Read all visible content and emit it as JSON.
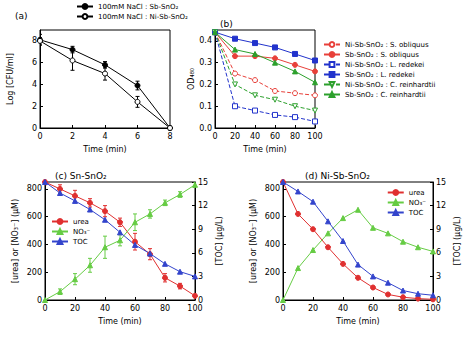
{
  "chart_data": [
    {
      "type": "line",
      "title": "(a)",
      "x_label": "Time (min)",
      "y_label": "Log [CFU/ml]",
      "x": [
        0,
        2,
        4,
        6,
        8
      ],
      "xlim": [
        0,
        8
      ],
      "xticks": [
        0,
        2,
        4,
        6,
        8
      ],
      "ylim": [
        0,
        9
      ],
      "yticks": [
        0,
        2,
        4,
        6,
        8
      ],
      "grid": false,
      "legend": "top",
      "series": [
        {
          "name": "100mM NaCl : Sb-SnO₂",
          "color": "#000000",
          "marker": "circle",
          "line_style": "solid",
          "values": [
            8.1,
            7.2,
            5.8,
            3.9,
            0
          ],
          "errors": [
            0.5,
            0.3,
            0.3,
            0.4,
            0
          ]
        },
        {
          "name": "100mM NaCl : Ni-Sb-SnO₂",
          "color": "#000000",
          "marker": "circle_open",
          "line_style": "solid",
          "values": [
            8.0,
            6.2,
            5.0,
            2.4,
            0
          ],
          "errors": [
            0.3,
            0.9,
            0.6,
            0.5,
            0
          ]
        }
      ]
    },
    {
      "type": "line",
      "title": "(b)",
      "x_label": "Time (min)",
      "y_label": "OD₄₈₀",
      "x": [
        0,
        20,
        40,
        60,
        80,
        100
      ],
      "xlim": [
        0,
        100
      ],
      "xticks": [
        0,
        20,
        40,
        60,
        80,
        100
      ],
      "ylim": [
        0,
        0.45
      ],
      "yticks": [
        {
          "value": 0,
          "label": "0.0"
        },
        0.1,
        0.2,
        0.3,
        0.4
      ],
      "grid": false,
      "legend": "right",
      "series": [
        {
          "name": "Ni-Sb-SnO₂ : S. obliquus",
          "color": "#e8403a",
          "marker": "circle_open",
          "line_style": "dashed",
          "values": [
            0.44,
            0.25,
            0.22,
            0.17,
            0.16,
            0.15
          ]
        },
        {
          "name": "Sb-SnO₂ : S. obliquus",
          "color": "#e8403a",
          "marker": "circle",
          "line_style": "solid",
          "values": [
            0.44,
            0.33,
            0.33,
            0.32,
            0.29,
            0.26
          ]
        },
        {
          "name": "Ni-Sb-SnO₂ : L. redekei",
          "color": "#2233cc",
          "marker": "square_open",
          "line_style": "dashed",
          "values": [
            0.44,
            0.1,
            0.08,
            0.06,
            0.05,
            0.03
          ]
        },
        {
          "name": "Sb-SnO₂ : L. redekei",
          "color": "#2233cc",
          "marker": "square",
          "line_style": "solid",
          "values": [
            0.44,
            0.41,
            0.39,
            0.37,
            0.34,
            0.31
          ]
        },
        {
          "name": "Ni-Sb-SnO₂ : C. reinhardtii",
          "color": "#2ca02c",
          "marker": "triangle_down_open",
          "line_style": "dashed",
          "values": [
            0.44,
            0.2,
            0.15,
            0.13,
            0.1,
            0.08
          ]
        },
        {
          "name": "Sb-SnO₂ : C. reinhardtii",
          "color": "#2ca02c",
          "marker": "triangle",
          "line_style": "solid",
          "values": [
            0.44,
            0.36,
            0.34,
            0.3,
            0.26,
            0.21
          ]
        }
      ]
    },
    {
      "type": "line",
      "title": "(c) Sn-SnO₂",
      "x_label": "Time (min)",
      "y_label": "[urea] or [NO₃⁻] (μM)",
      "y2_label": "[TOC] (μg/L)",
      "x": [
        0,
        10,
        20,
        30,
        40,
        50,
        60,
        70,
        80,
        90,
        100
      ],
      "xlim": [
        0,
        100
      ],
      "xticks": [
        0,
        20,
        40,
        60,
        80,
        100
      ],
      "ylim": [
        0,
        850
      ],
      "yticks": [
        0,
        200,
        400,
        600,
        800
      ],
      "y2lim": [
        0,
        15
      ],
      "y2ticks": [
        0,
        3,
        6,
        9,
        12,
        15
      ],
      "grid": false,
      "legend": "center left",
      "series": [
        {
          "name": "urea",
          "color": "#e03030",
          "marker": "circle",
          "line_style": "solid",
          "values": [
            850,
            800,
            750,
            700,
            640,
            560,
            420,
            330,
            160,
            100,
            30
          ],
          "errors": [
            20,
            30,
            40,
            30,
            40,
            30,
            60,
            40,
            30,
            20,
            10
          ]
        },
        {
          "name": "NO₃⁻",
          "color": "#66cc44",
          "marker": "triangle",
          "line_style": "solid",
          "values": [
            0,
            60,
            150,
            250,
            380,
            430,
            560,
            620,
            700,
            760,
            830
          ],
          "errors": [
            0,
            20,
            40,
            50,
            80,
            40,
            60,
            30,
            20,
            20,
            20
          ]
        },
        {
          "name": "TOC",
          "color": "#3344cc",
          "marker": "triangle",
          "line_style": "solid",
          "axis": "y2",
          "values": [
            15,
            13.6,
            12.6,
            11.5,
            10.2,
            8.6,
            7.0,
            5.9,
            4.6,
            3.6,
            3.0
          ]
        }
      ]
    },
    {
      "type": "line",
      "title": "(d) Ni-Sb-SnO₂",
      "x_label": "Time (min)",
      "y_label": "[urea] or [NO₃⁻] (μM)",
      "y2_label": "[TOC] (μg/L)",
      "x": [
        0,
        10,
        20,
        30,
        40,
        50,
        60,
        70,
        80,
        90,
        100
      ],
      "xlim": [
        0,
        100
      ],
      "xticks": [
        0,
        20,
        40,
        60,
        80,
        100
      ],
      "ylim": [
        0,
        850
      ],
      "yticks": [
        0,
        200,
        400,
        600,
        800
      ],
      "y2lim": [
        0,
        15
      ],
      "y2ticks": [
        0,
        3,
        6,
        9,
        12,
        15
      ],
      "grid": false,
      "legend": "upper right",
      "series": [
        {
          "name": "urea",
          "color": "#e03030",
          "marker": "circle",
          "line_style": "solid",
          "values": [
            850,
            620,
            510,
            380,
            260,
            160,
            90,
            40,
            20,
            10,
            5
          ]
        },
        {
          "name": "NO₃⁻",
          "color": "#66cc44",
          "marker": "triangle",
          "line_style": "solid",
          "values": [
            0,
            230,
            360,
            480,
            590,
            650,
            520,
            480,
            420,
            380,
            350
          ]
        },
        {
          "name": "TOC",
          "color": "#3344cc",
          "marker": "triangle",
          "line_style": "solid",
          "axis": "y2",
          "values": [
            15,
            13.8,
            12.5,
            10.0,
            7.5,
            4.5,
            3.0,
            2.2,
            1.2,
            0.8,
            0.6
          ]
        }
      ]
    }
  ]
}
